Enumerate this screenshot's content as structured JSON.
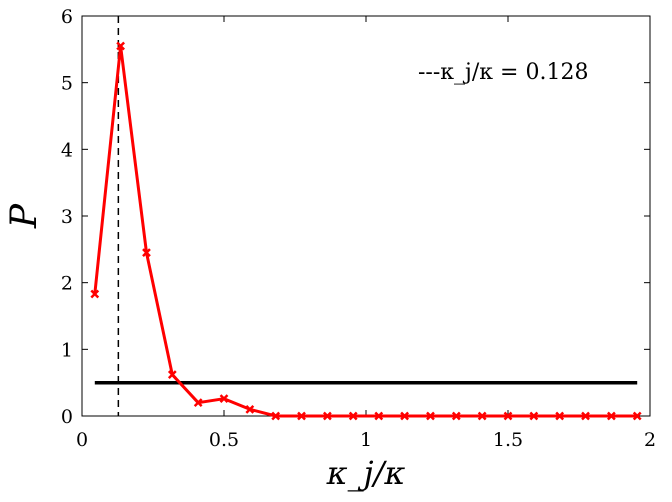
{
  "chart_data": {
    "type": "line",
    "xlabel": "κ_j/κ",
    "ylabel": "P",
    "xlim": [
      0,
      2
    ],
    "ylim": [
      0,
      6
    ],
    "x_ticks": [
      "0",
      "0.5",
      "1",
      "1.5",
      "2"
    ],
    "y_ticks": [
      "0",
      "1",
      "2",
      "3",
      "4",
      "5",
      "6"
    ],
    "grid": false,
    "legend_position": "top-right",
    "legend": "---κ_j/κ = 0.128",
    "reference_line": {
      "style": "dashed",
      "color": "#000000",
      "x": 0.128
    },
    "series": [
      {
        "color": "#ff0000",
        "marker": "x",
        "x": [
          0.045,
          0.136,
          0.227,
          0.318,
          0.409,
          0.5,
          0.591,
          0.682,
          0.773,
          0.864,
          0.955,
          1.045,
          1.136,
          1.227,
          1.318,
          1.409,
          1.5,
          1.591,
          1.682,
          1.773,
          1.864,
          1.955
        ],
        "y": [
          1.83,
          5.55,
          2.45,
          0.62,
          0.2,
          0.26,
          0.1,
          0.0,
          0.0,
          0.0,
          0.0,
          0.0,
          0.0,
          0.0,
          0.0,
          0.0,
          0.0,
          0.0,
          0.0,
          0.0,
          0.0,
          0.0
        ]
      },
      {
        "color": "#000000",
        "marker": "none",
        "x": [
          0.045,
          1.955
        ],
        "y": [
          0.5,
          0.5
        ]
      }
    ]
  }
}
